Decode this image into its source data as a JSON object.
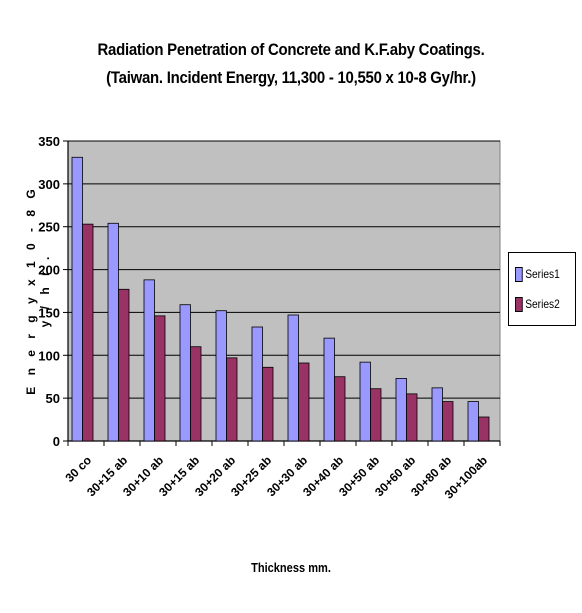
{
  "chart_data": {
    "type": "bar",
    "title": "Radiation Penetration of Concrete and K.F.aby Coatings.",
    "subtitle": "(Taiwan. Incident Energy, 11,300 - 10,550 x 10-8 Gy/hr.)",
    "xlabel": "Thickness mm.",
    "ylabel": "E n e r g y  x  1 0 - 8  G y / h r .",
    "categories": [
      "30 co",
      "30+15 ab",
      "30+10 ab",
      "30+15 ab",
      "30+20 ab",
      "30+25 ab",
      "30+30 ab",
      "30+40 ab",
      "30+50 ab",
      "30+60 ab",
      "30+80 ab",
      "30+100ab"
    ],
    "series": [
      {
        "name": "Series1",
        "color": "#9999ff",
        "values": [
          331,
          254,
          188,
          159,
          152,
          133,
          147,
          120,
          92,
          73,
          62,
          46
        ]
      },
      {
        "name": "Series2",
        "color": "#993366",
        "values": [
          253,
          177,
          146,
          110,
          97,
          86,
          91,
          75,
          61,
          55,
          46,
          28
        ]
      }
    ],
    "ylim": [
      0,
      350
    ],
    "yticks": [
      0,
      50,
      100,
      150,
      200,
      250,
      300,
      350
    ],
    "grid": true,
    "plot_background": "#c0c0c0",
    "legend": "right"
  }
}
